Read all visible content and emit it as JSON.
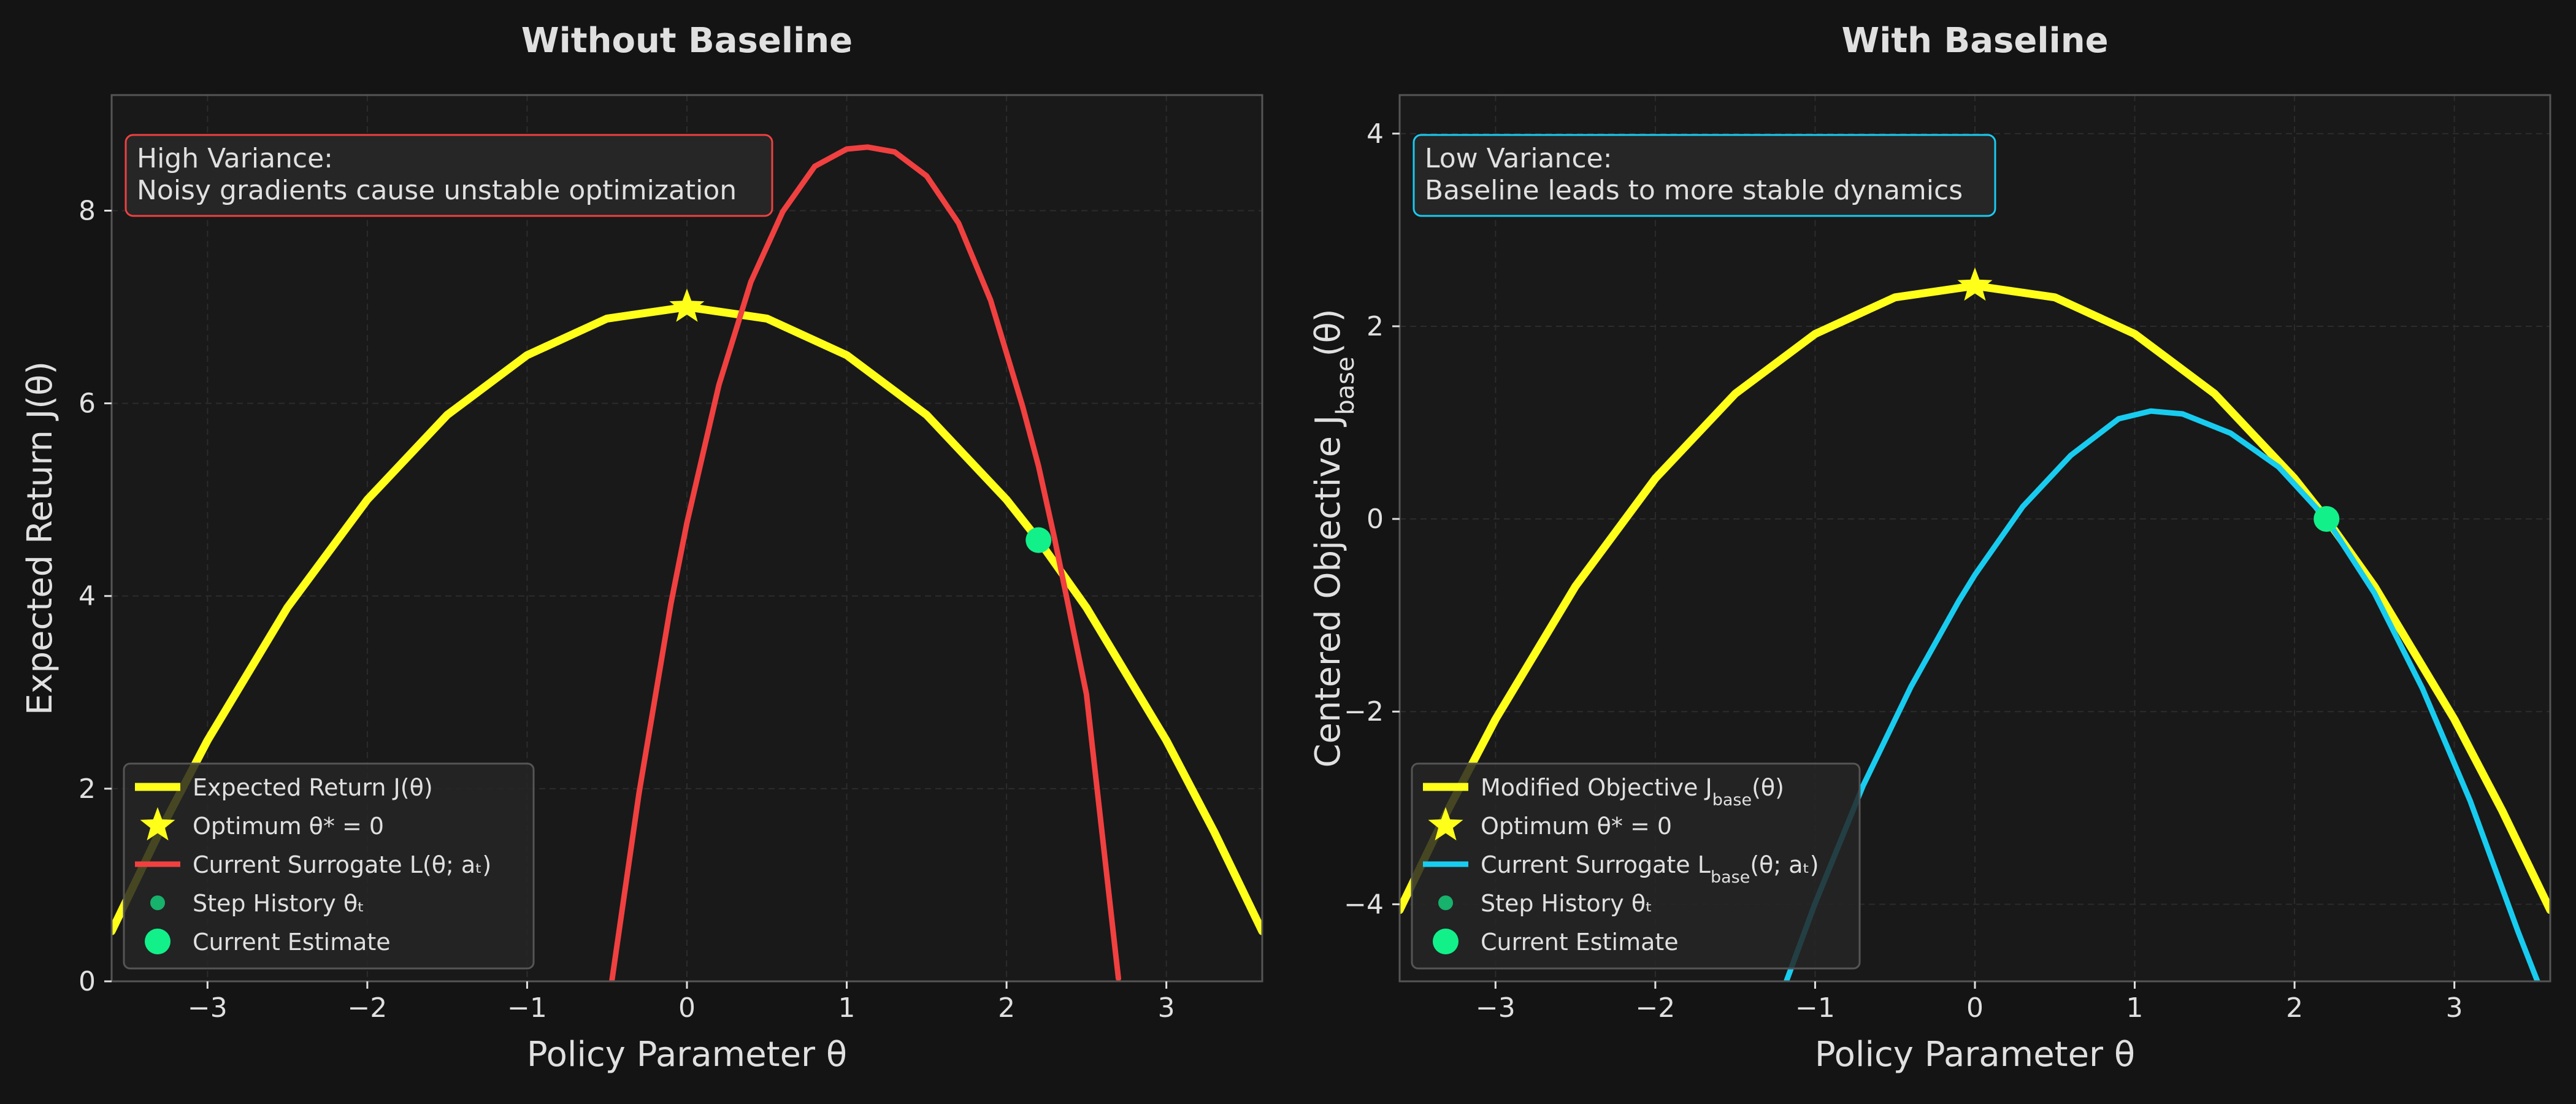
{
  "colors": {
    "background": "#141414",
    "panel": "#191919",
    "spine": "#555555",
    "grid": "#2c2c2c",
    "text": "#e0e0e0",
    "true_objective": "#ffff1a",
    "surrogate_no_baseline": "#f04040",
    "surrogate_baseline": "#18ccf0",
    "current_estimate": "#12f08a"
  },
  "chart_data": [
    {
      "type": "line",
      "title": "Without Baseline",
      "xlabel": "Policy Parameter θ",
      "ylabel": "Expected Return J(θ)",
      "xlim": [
        -3.6,
        3.6
      ],
      "ylim": [
        0,
        9.2
      ],
      "xticks": [
        -3,
        -2,
        -1,
        0,
        1,
        2,
        3
      ],
      "xtick_labels": [
        "−3",
        "−2",
        "−1",
        "0",
        "1",
        "2",
        "3"
      ],
      "yticks": [
        0,
        2,
        4,
        6,
        8
      ],
      "ytick_labels": [
        "0",
        "2",
        "4",
        "6",
        "8"
      ],
      "grid": true,
      "legend_position": "bottom-left",
      "annotation": {
        "text": [
          "High Variance:",
          "Noisy gradients cause unstable optimization"
        ],
        "position": "top-left",
        "border_color": "#f04040"
      },
      "series": [
        {
          "name": "Expected Return J(θ)",
          "kind": "curve",
          "color": "#ffff1a",
          "x": [
            -3.6,
            -3.3,
            -3.0,
            -2.5,
            -2.0,
            -1.5,
            -1.0,
            -0.5,
            0.0,
            0.5,
            1.0,
            1.5,
            2.0,
            2.2,
            2.5,
            3.0,
            3.3,
            3.6
          ],
          "y": [
            0.52,
            1.55,
            2.5,
            3.88,
            5.0,
            5.88,
            6.5,
            6.88,
            7.0,
            6.88,
            6.5,
            5.88,
            5.0,
            4.58,
            3.88,
            2.5,
            1.55,
            0.52
          ]
        },
        {
          "name": "Optimum θ* = 0",
          "kind": "star",
          "color": "#ffff1a",
          "x": [
            0.0
          ],
          "y": [
            7.0
          ]
        },
        {
          "name": "Current Surrogate L(θ; aₜ)",
          "kind": "curve",
          "color": "#f04040",
          "x": [
            -0.47,
            -0.3,
            -0.1,
            0.0,
            0.2,
            0.4,
            0.6,
            0.8,
            1.0,
            1.13,
            1.3,
            1.5,
            1.7,
            1.9,
            2.1,
            2.2,
            2.3,
            2.5,
            2.7
          ],
          "y": [
            0.0,
            1.95,
            3.92,
            4.76,
            6.19,
            7.26,
            7.99,
            8.46,
            8.64,
            8.66,
            8.61,
            8.36,
            7.87,
            7.07,
            5.97,
            5.35,
            4.6,
            2.98,
            0.03
          ]
        },
        {
          "name": "Step History θₜ",
          "kind": "points",
          "color": "#12f08a",
          "x": [],
          "y": []
        },
        {
          "name": "Current Estimate",
          "kind": "marker",
          "color": "#12f08a",
          "x": [
            2.2
          ],
          "y": [
            4.58
          ]
        }
      ]
    },
    {
      "type": "line",
      "title": "With Baseline",
      "xlabel": "Policy Parameter θ",
      "ylabel": "Centered Objective J_base(θ)",
      "xlim": [
        -3.6,
        3.6
      ],
      "ylim": [
        -4.8,
        4.4
      ],
      "xticks": [
        -3,
        -2,
        -1,
        0,
        1,
        2,
        3
      ],
      "xtick_labels": [
        "−3",
        "−2",
        "−1",
        "0",
        "1",
        "2",
        "3"
      ],
      "yticks": [
        -4,
        -2,
        0,
        2,
        4
      ],
      "ytick_labels": [
        "−4",
        "−2",
        "0",
        "2",
        "4"
      ],
      "grid": true,
      "legend_position": "bottom-left",
      "annotation": {
        "text": [
          "Low Variance:",
          "Baseline leads to more stable dynamics"
        ],
        "position": "top-left",
        "border_color": "#18ccf0"
      },
      "series": [
        {
          "name": "Modified Objective J_base(θ)",
          "kind": "curve",
          "color": "#ffff1a",
          "x": [
            -3.6,
            -3.3,
            -3.0,
            -2.5,
            -2.0,
            -1.5,
            -1.0,
            -0.5,
            0.0,
            0.5,
            1.0,
            1.5,
            2.0,
            2.2,
            2.5,
            3.0,
            3.3,
            3.6
          ],
          "y": [
            -4.06,
            -3.03,
            -2.08,
            -0.7,
            0.42,
            1.3,
            1.92,
            2.3,
            2.42,
            2.3,
            1.92,
            1.3,
            0.42,
            0.0,
            -0.7,
            -2.08,
            -3.03,
            -4.06
          ]
        },
        {
          "name": "Optimum θ* = 0",
          "kind": "star",
          "color": "#ffff1a",
          "x": [
            0.0
          ],
          "y": [
            2.42
          ]
        },
        {
          "name": "Current Surrogate L_base(θ; aₜ)",
          "kind": "curve",
          "color": "#18ccf0",
          "x": [
            -1.18,
            -1.0,
            -0.7,
            -0.4,
            -0.1,
            0.0,
            0.3,
            0.6,
            0.9,
            1.1,
            1.3,
            1.6,
            1.9,
            2.2,
            2.5,
            2.8,
            3.1,
            3.4,
            3.52
          ],
          "y": [
            -4.8,
            -3.99,
            -2.77,
            -1.74,
            -0.85,
            -0.58,
            0.13,
            0.66,
            1.04,
            1.12,
            1.09,
            0.89,
            0.54,
            0.0,
            -0.77,
            -1.76,
            -2.93,
            -4.29,
            -4.8
          ]
        },
        {
          "name": "Step History θₜ",
          "kind": "points",
          "color": "#12f08a",
          "x": [],
          "y": []
        },
        {
          "name": "Current Estimate",
          "kind": "marker",
          "color": "#12f08a",
          "x": [
            2.2
          ],
          "y": [
            0.0
          ]
        }
      ]
    }
  ]
}
